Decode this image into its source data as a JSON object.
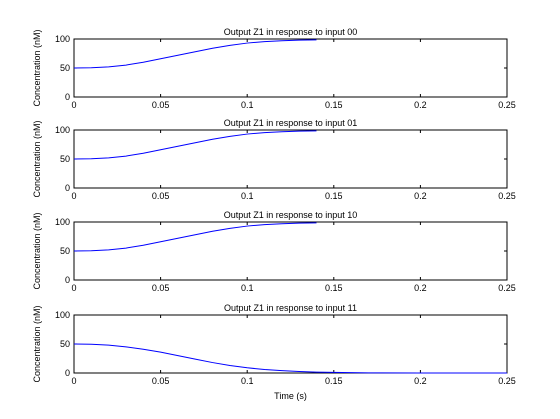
{
  "chart_data": [
    {
      "type": "line",
      "title": "Output Z1 in response to input 00",
      "xlabel": "",
      "ylabel": "Concentration (nM)",
      "xlim": [
        0,
        0.25
      ],
      "ylim": [
        0,
        100
      ],
      "xticks": [
        "0",
        "0.05",
        "0.1",
        "0.15",
        "0.2",
        "0.25"
      ],
      "yticks": [
        "0",
        "50",
        "100"
      ],
      "grid": false,
      "series": [
        {
          "color": "#0000ff",
          "x": [
            0,
            0.01,
            0.02,
            0.03,
            0.04,
            0.05,
            0.06,
            0.07,
            0.08,
            0.09,
            0.1,
            0.11,
            0.12,
            0.13,
            0.14
          ],
          "y": [
            50,
            50.5,
            52,
            55,
            60,
            66,
            72,
            78,
            84,
            89,
            93,
            95.5,
            97,
            98,
            98.5
          ]
        }
      ]
    },
    {
      "type": "line",
      "title": "Output Z1 in response to input 01",
      "xlabel": "",
      "ylabel": "Concentration (nM)",
      "xlim": [
        0,
        0.25
      ],
      "ylim": [
        0,
        100
      ],
      "xticks": [
        "0",
        "0.05",
        "0.1",
        "0.15",
        "0.2",
        "0.25"
      ],
      "yticks": [
        "0",
        "50",
        "100"
      ],
      "grid": false,
      "series": [
        {
          "color": "#0000ff",
          "x": [
            0,
            0.01,
            0.02,
            0.03,
            0.04,
            0.05,
            0.06,
            0.07,
            0.08,
            0.09,
            0.1,
            0.11,
            0.12,
            0.13,
            0.14
          ],
          "y": [
            50,
            50.5,
            52,
            55,
            60,
            66,
            72,
            78,
            84,
            89,
            93,
            95.5,
            97,
            98,
            98.5
          ]
        }
      ]
    },
    {
      "type": "line",
      "title": "Output Z1 in response to input 10",
      "xlabel": "",
      "ylabel": "Concentration (nM)",
      "xlim": [
        0,
        0.25
      ],
      "ylim": [
        0,
        100
      ],
      "xticks": [
        "0",
        "0.05",
        "0.1",
        "0.15",
        "0.2",
        "0.25"
      ],
      "yticks": [
        "0",
        "50",
        "100"
      ],
      "grid": false,
      "series": [
        {
          "color": "#0000ff",
          "x": [
            0,
            0.01,
            0.02,
            0.03,
            0.04,
            0.05,
            0.06,
            0.07,
            0.08,
            0.09,
            0.1,
            0.11,
            0.12,
            0.13,
            0.14
          ],
          "y": [
            50,
            50.5,
            52,
            55,
            60,
            66,
            72,
            78,
            84,
            89,
            93,
            95.5,
            97,
            98,
            98.5
          ]
        }
      ]
    },
    {
      "type": "line",
      "title": "Output Z1 in response to input 11",
      "xlabel": "Time (s)",
      "ylabel": "Concentration (nM)",
      "xlim": [
        0,
        0.25
      ],
      "ylim": [
        0,
        100
      ],
      "xticks": [
        "0",
        "0.05",
        "0.1",
        "0.15",
        "0.2",
        "0.25"
      ],
      "yticks": [
        "0",
        "50",
        "100"
      ],
      "grid": false,
      "series": [
        {
          "color": "#0000ff",
          "x": [
            0,
            0.01,
            0.02,
            0.03,
            0.04,
            0.05,
            0.06,
            0.07,
            0.08,
            0.09,
            0.1,
            0.11,
            0.12,
            0.13,
            0.14,
            0.15,
            0.16,
            0.17,
            0.2,
            0.25
          ],
          "y": [
            50,
            49.5,
            48,
            45,
            41,
            36,
            30,
            24,
            18,
            13,
            9,
            6,
            4,
            2.5,
            1.5,
            1,
            0.6,
            0.3,
            0.1,
            0
          ]
        }
      ]
    }
  ]
}
